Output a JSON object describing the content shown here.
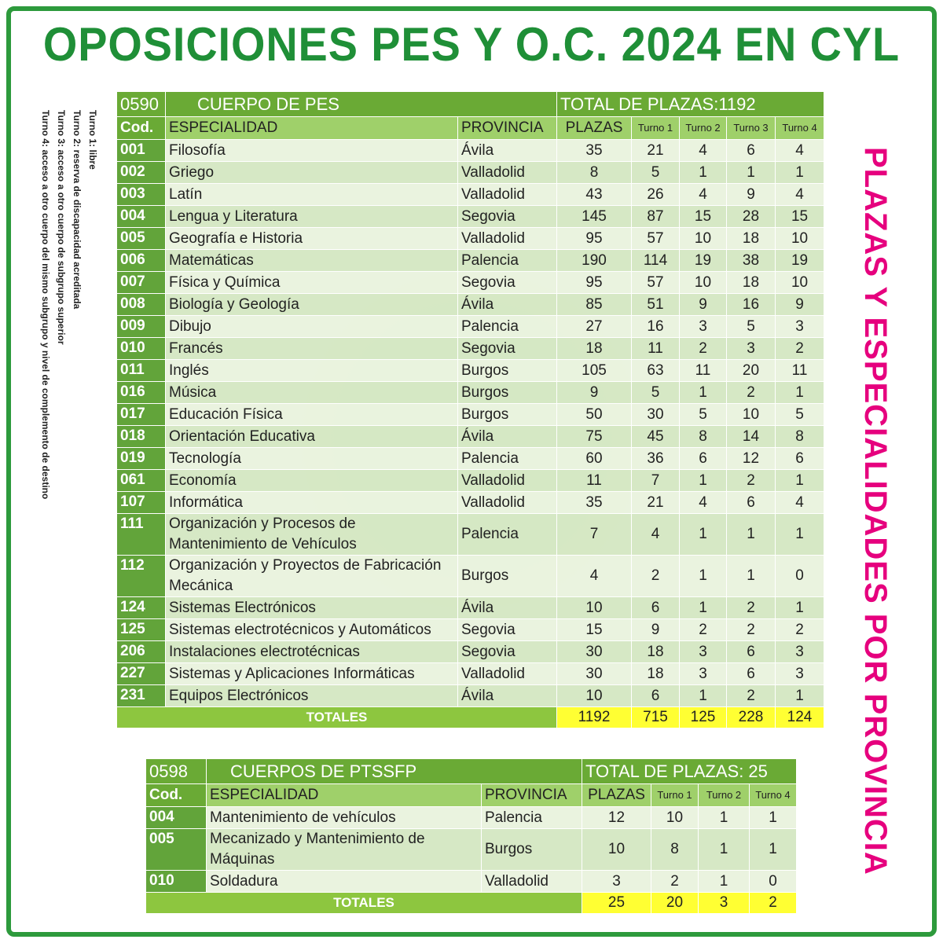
{
  "title": "OPOSICIONES PES Y O.C. 2024 EN CYL",
  "side_title": "PLAZAS Y ESPECIALIDADES POR PROVINCIA",
  "notes": [
    "Turno 1: libre",
    "Turno 2: reserva de discapacidad acreditada",
    "Turno 3: acceso a otro cuerpo de subgrupo superior",
    "Turno 4: acceso a otro cuerpo del mismo subgrupo y nivel de complemento de destino"
  ],
  "colors": {
    "title": "#1f8f37",
    "side_title": "#e6007e",
    "header": "#6aaa35",
    "totals_highlight": "#ffff33"
  },
  "tables": [
    {
      "code": "0590",
      "name": "CUERPO DE PES",
      "total_label": "TOTAL DE PLAZAS:1192",
      "headers": [
        "Cod.",
        "ESPECIALIDAD",
        "PROVINCIA",
        "PLAZAS",
        "Turno 1",
        "Turno 2",
        "Turno 3",
        "Turno 4"
      ],
      "rows": [
        [
          "001",
          "Filosofía",
          "Ávila",
          "35",
          "21",
          "4",
          "6",
          "4"
        ],
        [
          "002",
          "Griego",
          "Valladolid",
          "8",
          "5",
          "1",
          "1",
          "1"
        ],
        [
          "003",
          "Latín",
          "Valladolid",
          "43",
          "26",
          "4",
          "9",
          "4"
        ],
        [
          "004",
          "Lengua y Literatura",
          "Segovia",
          "145",
          "87",
          "15",
          "28",
          "15"
        ],
        [
          "005",
          "Geografía e Historia",
          "Valladolid",
          "95",
          "57",
          "10",
          "18",
          "10"
        ],
        [
          "006",
          "Matemáticas",
          "Palencia",
          "190",
          "114",
          "19",
          "38",
          "19"
        ],
        [
          "007",
          "Física y Química",
          "Segovia",
          "95",
          "57",
          "10",
          "18",
          "10"
        ],
        [
          "008",
          "Biología y Geología",
          "Ávila",
          "85",
          "51",
          "9",
          "16",
          "9"
        ],
        [
          "009",
          "Dibujo",
          "Palencia",
          "27",
          "16",
          "3",
          "5",
          "3"
        ],
        [
          "010",
          "Francés",
          "Segovia",
          "18",
          "11",
          "2",
          "3",
          "2"
        ],
        [
          "011",
          "Inglés",
          "Burgos",
          "105",
          "63",
          "11",
          "20",
          "11"
        ],
        [
          "016",
          "Música",
          "Burgos",
          "9",
          "5",
          "1",
          "2",
          "1"
        ],
        [
          "017",
          "Educación Física",
          "Burgos",
          "50",
          "30",
          "5",
          "10",
          "5"
        ],
        [
          "018",
          "Orientación Educativa",
          "Ávila",
          "75",
          "45",
          "8",
          "14",
          "8"
        ],
        [
          "019",
          "Tecnología",
          "Palencia",
          "60",
          "36",
          "6",
          "12",
          "6"
        ],
        [
          "061",
          "Economía",
          "Valladolid",
          "11",
          "7",
          "1",
          "2",
          "1"
        ],
        [
          "107",
          "Informática",
          "Valladolid",
          "35",
          "21",
          "4",
          "6",
          "4"
        ],
        [
          "111",
          "Organización y Procesos de Mantenimiento de Vehículos",
          "Palencia",
          "7",
          "4",
          "1",
          "1",
          "1"
        ],
        [
          "112",
          "Organización y Proyectos de Fabricación Mecánica",
          "Burgos",
          "4",
          "2",
          "1",
          "1",
          "0"
        ],
        [
          "124",
          "Sistemas Electrónicos",
          "Ávila",
          "10",
          "6",
          "1",
          "2",
          "1"
        ],
        [
          "125",
          "Sistemas electrotécnicos y Automáticos",
          "Segovia",
          "15",
          "9",
          "2",
          "2",
          "2"
        ],
        [
          "206",
          "Instalaciones electrotécnicas",
          "Segovia",
          "30",
          "18",
          "3",
          "6",
          "3"
        ],
        [
          "227",
          "Sistemas y Aplicaciones Informáticas",
          "Valladolid",
          "30",
          "18",
          "3",
          "6",
          "3"
        ],
        [
          "231",
          "Equipos Electrónicos",
          "Ávila",
          "10",
          "6",
          "1",
          "2",
          "1"
        ]
      ],
      "totals_label": "TOTALES",
      "totals": [
        "1192",
        "715",
        "125",
        "228",
        "124"
      ]
    },
    {
      "code": "0598",
      "name": "CUERPOS DE PTSSFP",
      "total_label": "TOTAL DE PLAZAS:  25",
      "headers": [
        "Cod.",
        "ESPECIALIDAD",
        "PROVINCIA",
        "PLAZAS",
        "Turno 1",
        "Turno 2",
        "Turno 4"
      ],
      "rows": [
        [
          "004",
          "Mantenimiento de vehículos",
          "Palencia",
          "12",
          "10",
          "1",
          "1"
        ],
        [
          "005",
          "Mecanizado y Mantenimiento de Máquinas",
          "Burgos",
          "10",
          "8",
          "1",
          "1"
        ],
        [
          "010",
          "Soldadura",
          "Valladolid",
          "3",
          "2",
          "1",
          "0"
        ]
      ],
      "totals_label": "TOTALES",
      "totals": [
        "25",
        "20",
        "3",
        "2"
      ]
    }
  ]
}
